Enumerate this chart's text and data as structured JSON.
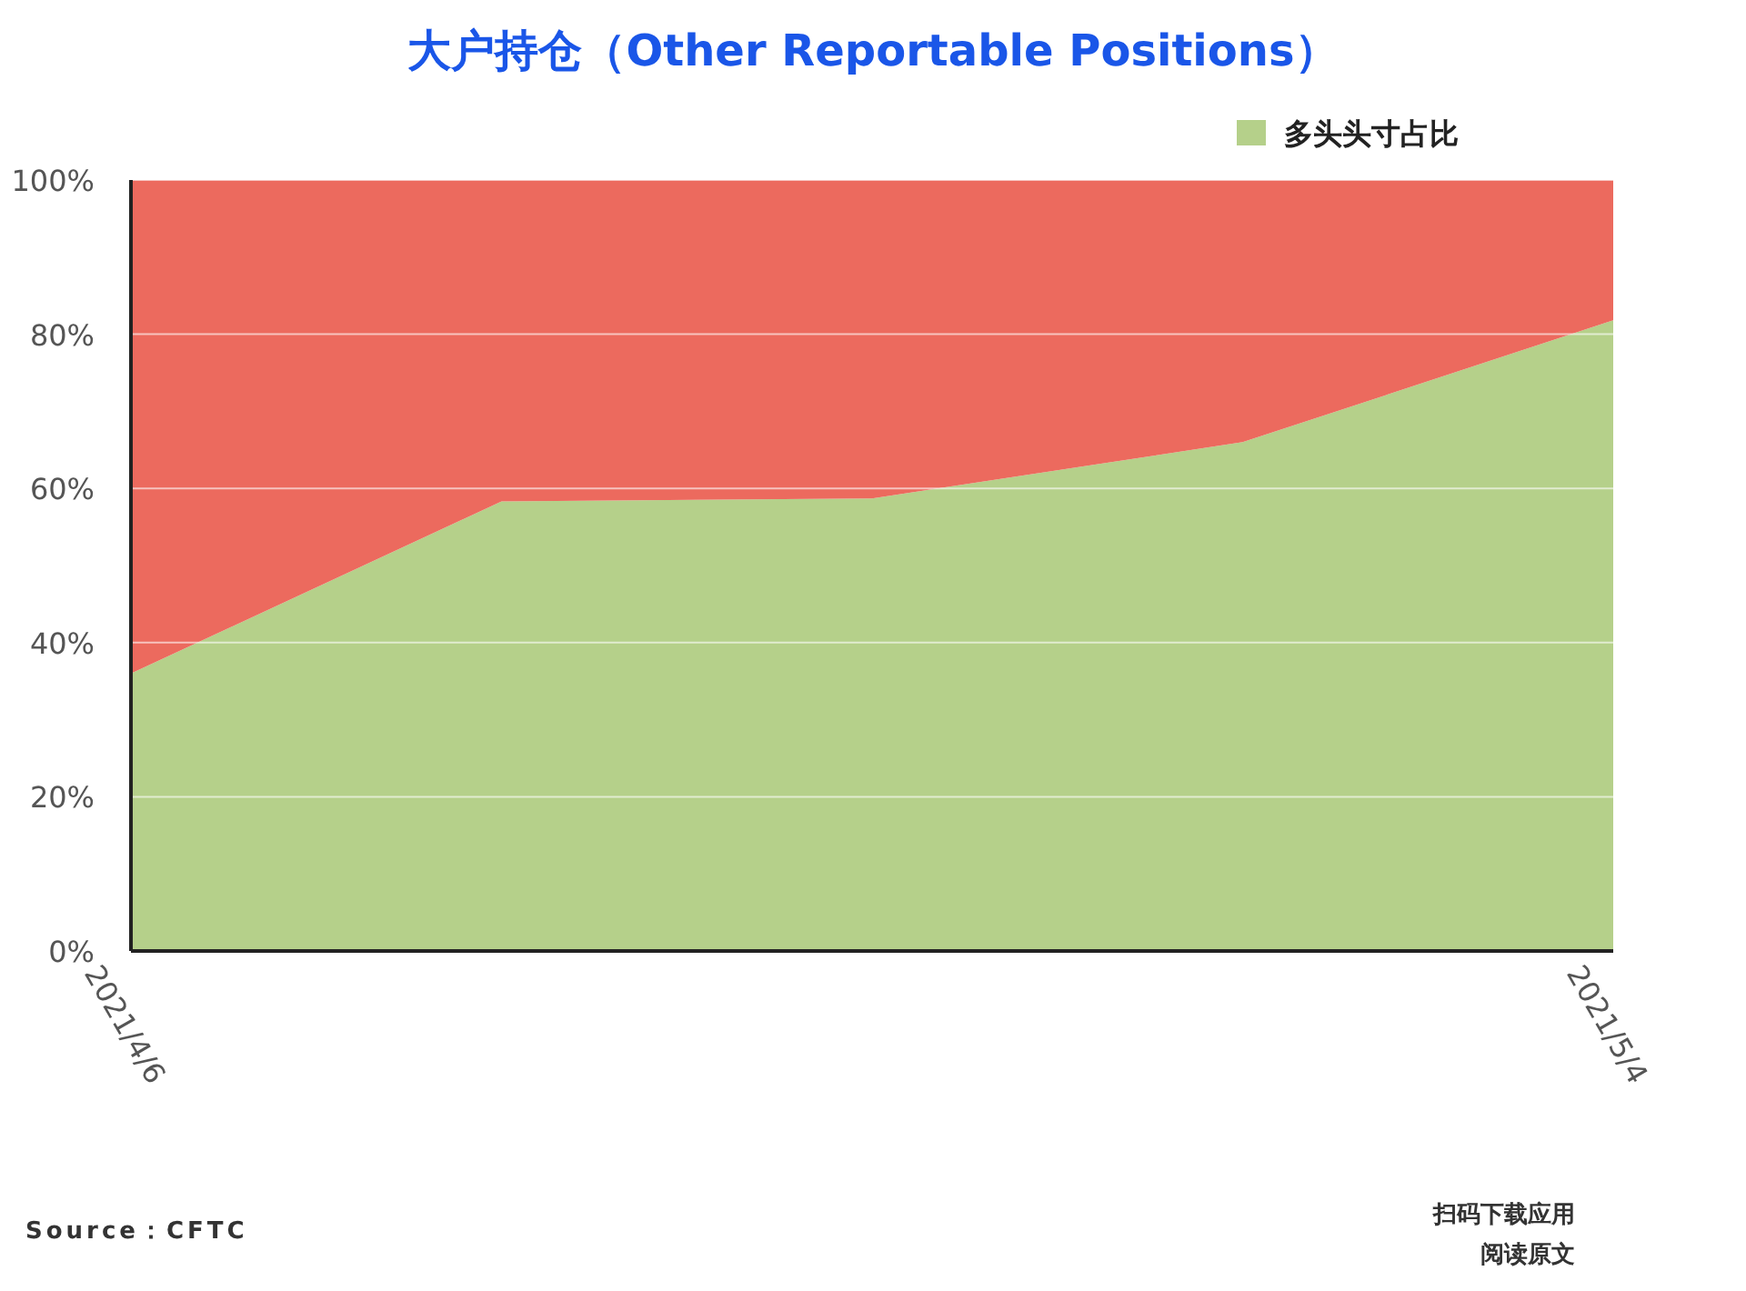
{
  "chart_data": {
    "type": "area",
    "stacked": true,
    "title": "大户持仓（Other Reportable Positions）",
    "categories": [
      "2021/4/6",
      null,
      null,
      null,
      "2021/5/4"
    ],
    "series": [
      {
        "name": "多头头寸占比",
        "color": "#b5d08a",
        "values": [
          36,
          58.3,
          58.7,
          66,
          81.8
        ]
      },
      {
        "color": "#ec6a5e",
        "values": [
          64,
          41.7,
          41.3,
          34,
          18.2
        ]
      }
    ],
    "ylim": [
      0,
      100
    ],
    "yticks": [
      {
        "value": 0,
        "label": "0%"
      },
      {
        "value": 20,
        "label": "20%"
      },
      {
        "value": 40,
        "label": "40%"
      },
      {
        "value": 60,
        "label": "60%"
      },
      {
        "value": 80,
        "label": "80%"
      },
      {
        "value": 100,
        "label": "100%"
      }
    ],
    "grid": "y",
    "legend": "top right",
    "annotations": [
      "Source：CFTC",
      "扫码下载应用",
      "阅读原文"
    ]
  }
}
